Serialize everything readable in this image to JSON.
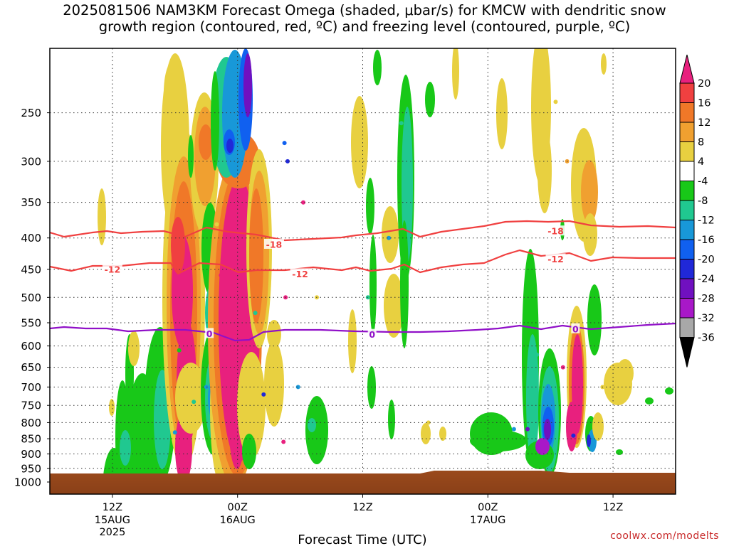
{
  "title": {
    "line1": "2025081506 NAM3KM Forecast Omega (shaded, μbar/s) for KMCW with dendritic snow",
    "line2": "growth region (contoured, red, ºC) and freezing level (contoured, purple, ºC)"
  },
  "credit": "coolwx.com/modelts",
  "chart_data": {
    "type": "heatmap",
    "title": "2025081506 NAM3KM Forecast Omega (shaded, μbar/s) for KMCW with dendritic snow growth region (contoured, red, ºC) and freezing level (contoured, purple, ºC)",
    "xlabel": "Forecast Time (UTC)",
    "ylabel": "",
    "x_ticks": [
      {
        "label": "12Z",
        "sub": [
          "15AUG",
          "2025"
        ],
        "hour": 6
      },
      {
        "label": "00Z",
        "sub": [
          "16AUG"
        ],
        "hour": 18
      },
      {
        "label": "12Z",
        "sub": [],
        "hour": 30
      },
      {
        "label": "00Z",
        "sub": [
          "17AUG"
        ],
        "hour": 42
      },
      {
        "label": "12Z",
        "sub": [],
        "hour": 54
      }
    ],
    "xlim_hours": [
      0,
      60
    ],
    "y_ticks": [
      250,
      300,
      350,
      400,
      450,
      500,
      550,
      600,
      650,
      700,
      750,
      800,
      850,
      900,
      950,
      1000
    ],
    "ylim_hPa": [
      200,
      1000
    ],
    "y_scale": "log-pressure",
    "grid": "dotted",
    "colorbar": {
      "ticks": [
        "20",
        "16",
        "12",
        "8",
        "4",
        "-4",
        "-8",
        "-12",
        "-16",
        "-20",
        "-24",
        "-28",
        "-32",
        "-36"
      ],
      "colors": [
        "#e8207e",
        "#f04040",
        "#f07828",
        "#f0a030",
        "#e8d040",
        "#ffffff",
        "#18c818",
        "#20c890",
        "#1898d8",
        "#1060f0",
        "#2028d8",
        "#7010c0",
        "#a818c8",
        "#a8a8a8",
        "#000000"
      ]
    },
    "contours": [
      {
        "name": "-18",
        "color": "#f04040",
        "level": -18
      },
      {
        "name": "-12",
        "color": "#f04040",
        "level": -12
      },
      {
        "name": "0",
        "color": "#9010c8",
        "level": 0
      }
    ],
    "contour_labels": [
      {
        "text": "-18",
        "color": "#f04040",
        "hour": 21.5,
        "hPa": 410
      },
      {
        "text": "-18",
        "color": "#f04040",
        "hour": 48.5,
        "hPa": 390
      },
      {
        "text": "-12",
        "color": "#f04040",
        "hour": 6,
        "hPa": 450
      },
      {
        "text": "-12",
        "color": "#f04040",
        "hour": 24,
        "hPa": 458
      },
      {
        "text": "-12",
        "color": "#f04040",
        "hour": 48.5,
        "hPa": 433
      },
      {
        "text": "0",
        "color": "#9010c8",
        "hour": 15.3,
        "hPa": 573
      },
      {
        "text": "0",
        "color": "#9010c8",
        "hour": 30.9,
        "hPa": 575
      },
      {
        "text": "0",
        "color": "#9010c8",
        "hour": 50.4,
        "hPa": 563
      }
    ],
    "omega_cells": [
      {
        "hour": 11.2,
        "hPa": 795,
        "value": -8
      },
      {
        "hour": 12.0,
        "hPa": 830,
        "value": -12
      },
      {
        "hour": 13.8,
        "hPa": 740,
        "value": -8
      },
      {
        "hour": 15.0,
        "hPa": 700,
        "value": -12
      },
      {
        "hour": 12.4,
        "hPa": 610,
        "value": -4
      },
      {
        "hour": 16.0,
        "hPa": 380,
        "value": 4
      },
      {
        "hour": 16.4,
        "hPa": 460,
        "value": 20
      },
      {
        "hour": 17.4,
        "hPa": 600,
        "value": 20
      },
      {
        "hour": 17.2,
        "hPa": 800,
        "value": 20
      },
      {
        "hour": 19.0,
        "hPa": 290,
        "value": 12
      },
      {
        "hour": 19.7,
        "hPa": 530,
        "value": -8
      },
      {
        "hour": 20.5,
        "hPa": 720,
        "value": -20
      },
      {
        "hour": 22.5,
        "hPa": 280,
        "value": -16
      },
      {
        "hour": 22.8,
        "hPa": 300,
        "value": -20
      },
      {
        "hour": 22.6,
        "hPa": 500,
        "value": 20
      },
      {
        "hour": 22.4,
        "hPa": 860,
        "value": 20
      },
      {
        "hour": 23.8,
        "hPa": 700,
        "value": -12
      },
      {
        "hour": 24.3,
        "hPa": 350,
        "value": 20
      },
      {
        "hour": 25.6,
        "hPa": 500,
        "value": 4
      },
      {
        "hour": 30.5,
        "hPa": 500,
        "value": -8
      },
      {
        "hour": 32.5,
        "hPa": 400,
        "value": -12
      },
      {
        "hour": 33.7,
        "hPa": 260,
        "value": -8
      },
      {
        "hour": 36.3,
        "hPa": 800,
        "value": 4
      },
      {
        "hour": 44.5,
        "hPa": 820,
        "value": -12
      },
      {
        "hour": 45.8,
        "hPa": 820,
        "value": -24
      },
      {
        "hour": 46.7,
        "hPa": 620,
        "value": -8
      },
      {
        "hour": 48.5,
        "hPa": 240,
        "value": 4
      },
      {
        "hour": 49.2,
        "hPa": 650,
        "value": 20
      },
      {
        "hour": 49.6,
        "hPa": 300,
        "value": 8
      },
      {
        "hour": 50.2,
        "hPa": 840,
        "value": -20
      },
      {
        "hour": 53.0,
        "hPa": 700,
        "value": 4
      }
    ]
  }
}
